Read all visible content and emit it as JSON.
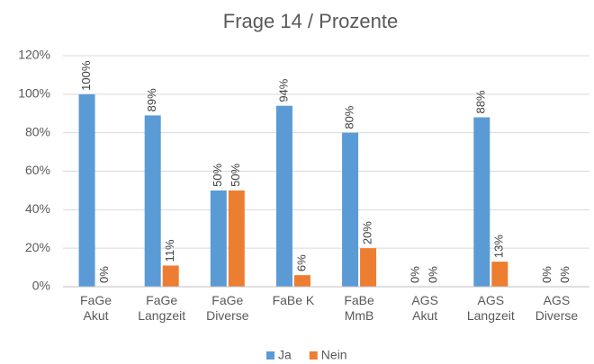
{
  "chart_data": {
    "type": "bar",
    "title": "Frage 14 / Prozente",
    "categories": [
      "FaGe\nAkut",
      "FaGe\nLangzeit",
      "FaGe\nDiverse",
      "FaBe K",
      "FaBe\nMmB",
      "AGS\nAkut",
      "AGS\nLangzeit",
      "AGS\nDiverse"
    ],
    "series": [
      {
        "name": "Ja",
        "color": "#5b9bd5",
        "values": [
          100,
          89,
          50,
          94,
          80,
          0,
          88,
          0
        ],
        "value_labels": [
          "100%",
          "89%",
          "50%",
          "94%",
          "80%",
          "0%",
          "88%",
          "0%"
        ]
      },
      {
        "name": "Nein",
        "color": "#ed7d31",
        "values": [
          0,
          11,
          50,
          6,
          20,
          0,
          13,
          0
        ],
        "value_labels": [
          "0%",
          "11%",
          "50%",
          "6%",
          "20%",
          "0%",
          "13%",
          "0%"
        ]
      }
    ],
    "ylim": [
      0,
      120
    ],
    "yticks": [
      {
        "value": 0,
        "label": "0%"
      },
      {
        "value": 20,
        "label": "20%"
      },
      {
        "value": 40,
        "label": "40%"
      },
      {
        "value": 60,
        "label": "60%"
      },
      {
        "value": 80,
        "label": "80%"
      },
      {
        "value": 100,
        "label": "100%"
      },
      {
        "value": 120,
        "label": "120%"
      }
    ],
    "grid": true,
    "legend": "bottom"
  }
}
